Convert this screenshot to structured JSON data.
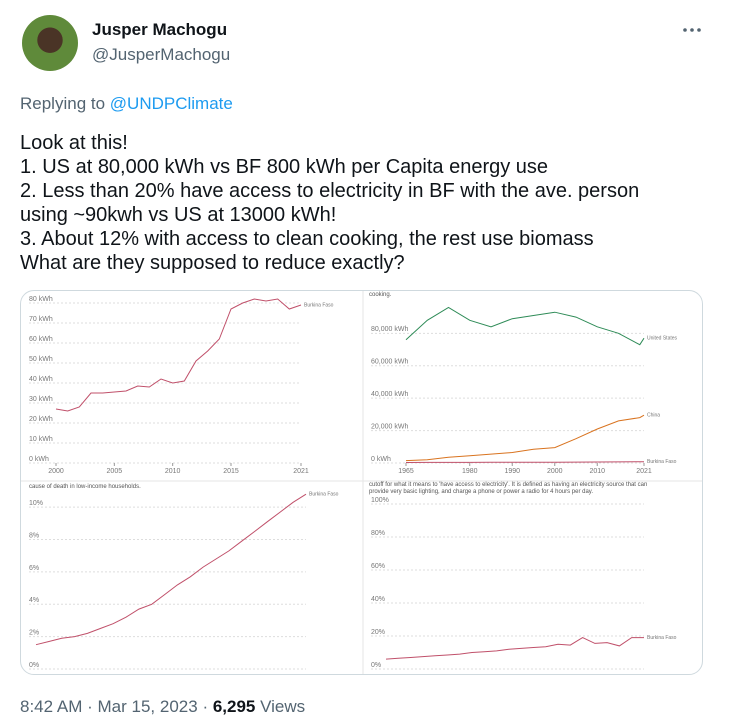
{
  "author": {
    "name": "Jusper Machogu",
    "handle": "@JusperMachogu"
  },
  "reply": {
    "prefix": "Replying to",
    "target": "@UNDPClimate"
  },
  "tweet_text": [
    "Look at this!",
    "1. US at 80,000 kWh vs BF 800 kWh per Capita energy use",
    "2. Less than 20% have access to electricity in BF with the ave. person",
    "using ~90kwh vs US at 13000 kWh!",
    "3. About 12% with access to clean cooking, the rest use biomass",
    "What are they supposed to reduce exactly?"
  ],
  "chart_data": [
    {
      "type": "line",
      "x": [
        2000,
        2001,
        2002,
        2003,
        2004,
        2005,
        2006,
        2007,
        2008,
        2009,
        2010,
        2011,
        2012,
        2013,
        2014,
        2015,
        2016,
        2017,
        2018,
        2019,
        2020,
        2021
      ],
      "series": [
        {
          "name": "Burkina Faso",
          "color": "#c0506a",
          "values": [
            27,
            26,
            28,
            35,
            35,
            35.5,
            36,
            38.5,
            38,
            42,
            40,
            41,
            51,
            56,
            62,
            77,
            80,
            82,
            81,
            82,
            77,
            79
          ]
        }
      ],
      "xlim": [
        2000,
        2021
      ],
      "xticks": [
        2000,
        2005,
        2010,
        2015,
        2021
      ],
      "ylim": [
        0,
        85
      ],
      "yticks": [
        {
          "value": 0,
          "label": "0 kWh"
        },
        {
          "value": 10,
          "label": "10 kWh"
        },
        {
          "value": 20,
          "label": "20 kWh"
        },
        {
          "value": 30,
          "label": "30 kWh"
        },
        {
          "value": 40,
          "label": "40 kWh"
        },
        {
          "value": 50,
          "label": "50 kWh"
        },
        {
          "value": 60,
          "label": "60 kWh"
        },
        {
          "value": 70,
          "label": "70 kWh"
        },
        {
          "value": 80,
          "label": "80 kWh"
        }
      ],
      "grid": true
    },
    {
      "type": "line",
      "caption": "cooking.",
      "x": [
        1965,
        1970,
        1975,
        1980,
        1985,
        1990,
        1995,
        2000,
        2005,
        2010,
        2015,
        2020,
        2021
      ],
      "series": [
        {
          "name": "United States",
          "color": "#2e8b57",
          "values": [
            76000,
            88000,
            96000,
            88000,
            84000,
            89000,
            91000,
            93000,
            90000,
            84000,
            80000,
            73000,
            77000
          ]
        },
        {
          "name": "China",
          "color": "#d9731f",
          "values": [
            1500,
            2000,
            3500,
            4500,
            5500,
            6500,
            8500,
            9500,
            15000,
            21000,
            26000,
            28000,
            29500
          ]
        },
        {
          "name": "Burkina Faso",
          "color": "#c0506a",
          "values": [
            300,
            350,
            400,
            400,
            450,
            450,
            500,
            500,
            550,
            600,
            700,
            800,
            800
          ]
        }
      ],
      "xlim": [
        1965,
        2021
      ],
      "xticks": [
        1965,
        1980,
        1990,
        2000,
        2010,
        2021
      ],
      "ylim": [
        0,
        95000
      ],
      "yticks": [
        {
          "value": 0,
          "label": "0 kWh"
        },
        {
          "value": 20000,
          "label": "20,000 kWh"
        },
        {
          "value": 40000,
          "label": "40,000 kWh"
        },
        {
          "value": 60000,
          "label": "60,000 kWh"
        },
        {
          "value": 80000,
          "label": "80,000 kWh"
        }
      ],
      "grid": true
    },
    {
      "type": "line",
      "caption": "cause of death in low-income households.",
      "x": [
        2000,
        2001,
        2002,
        2003,
        2004,
        2005,
        2006,
        2007,
        2008,
        2009,
        2010,
        2011,
        2012,
        2013,
        2014,
        2015,
        2016,
        2017,
        2018,
        2019,
        2020,
        2021
      ],
      "series": [
        {
          "name": "Burkina Faso",
          "color": "#c0506a",
          "values": [
            1.5,
            1.7,
            1.9,
            2.0,
            2.2,
            2.5,
            2.8,
            3.2,
            3.7,
            4.0,
            4.6,
            5.2,
            5.7,
            6.3,
            6.8,
            7.3,
            7.9,
            8.5,
            9.1,
            9.7,
            10.3,
            10.8
          ]
        }
      ],
      "xlim": [
        2000,
        2021
      ],
      "ylim": [
        0,
        11
      ],
      "yticks": [
        {
          "value": 0,
          "label": "0%"
        },
        {
          "value": 2,
          "label": "2%"
        },
        {
          "value": 4,
          "label": "4%"
        },
        {
          "value": 6,
          "label": "6%"
        },
        {
          "value": 8,
          "label": "8%"
        },
        {
          "value": 10,
          "label": "10%"
        }
      ],
      "grid": true
    },
    {
      "type": "line",
      "caption": "cutoff for what it means to 'have access to electricity'. It is defined as having an electricity source that can provide very basic lighting, and charge a phone or power a radio for 4 hours per day.",
      "x": [
        2000,
        2001,
        2002,
        2003,
        2004,
        2005,
        2006,
        2007,
        2008,
        2009,
        2010,
        2011,
        2012,
        2013,
        2014,
        2015,
        2016,
        2017,
        2018,
        2019,
        2020,
        2021
      ],
      "series": [
        {
          "name": "Burkina Faso",
          "color": "#c0506a",
          "values": [
            6,
            6.5,
            7,
            7.5,
            8,
            8.5,
            9,
            10,
            10.5,
            11,
            12,
            12.5,
            13,
            13.5,
            15,
            14.5,
            19,
            15.5,
            16,
            14,
            19,
            19
          ]
        }
      ],
      "xlim": [
        2000,
        2021
      ],
      "ylim": [
        0,
        100
      ],
      "yticks": [
        {
          "value": 0,
          "label": "0%"
        },
        {
          "value": 20,
          "label": "20%"
        },
        {
          "value": 40,
          "label": "40%"
        },
        {
          "value": 60,
          "label": "60%"
        },
        {
          "value": 80,
          "label": "80%"
        },
        {
          "value": 100,
          "label": "100%"
        }
      ],
      "grid": true
    }
  ],
  "footer": {
    "time": "8:42 AM",
    "separator": "·",
    "date": "Mar 15, 2023",
    "views": "6,295",
    "views_label": "Views"
  }
}
